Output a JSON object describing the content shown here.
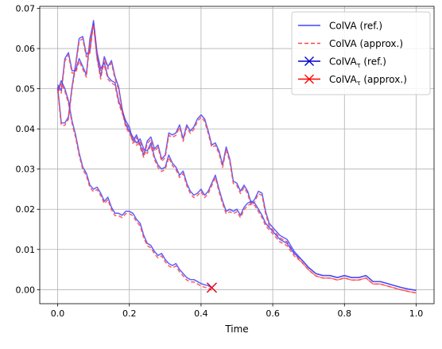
{
  "chart_data": {
    "type": "line",
    "xlabel": "Time",
    "ylabel": "",
    "xlim": [
      -0.05,
      1.05
    ],
    "ylim": [
      -0.0035,
      0.0705
    ],
    "xticks": [
      0.0,
      0.2,
      0.4,
      0.6,
      0.8,
      1.0
    ],
    "xtick_labels": [
      "0.0",
      "0.2",
      "0.4",
      "0.6",
      "0.8",
      "1.0"
    ],
    "yticks": [
      0.0,
      0.01,
      0.02,
      0.03,
      0.04,
      0.05,
      0.06,
      0.07
    ],
    "ytick_labels": [
      "0.00",
      "0.01",
      "0.02",
      "0.03",
      "0.04",
      "0.05",
      "0.06",
      "0.07"
    ],
    "grid": true,
    "legend_position": "upper-right",
    "legend": [
      {
        "label": "ColVA (ref.)",
        "color": "#4444ff",
        "style": "solid"
      },
      {
        "label": "ColVA (approx.)",
        "color": "#ff4444",
        "style": "dashed"
      },
      {
        "label": "ColVA",
        "sub": "τ",
        "suffix": " (ref.)",
        "color": "#0000cc",
        "style": "solid-x"
      },
      {
        "label": "ColVA",
        "sub": "τ",
        "suffix": " (approx.)",
        "color": "#ff0000",
        "style": "solid-x"
      }
    ],
    "series": [
      {
        "role": "path1",
        "x": [
          0.0,
          0.01,
          0.02,
          0.03,
          0.04,
          0.05,
          0.06,
          0.07,
          0.08,
          0.09,
          0.1,
          0.11,
          0.12,
          0.13,
          0.14,
          0.15,
          0.16,
          0.17,
          0.18,
          0.19,
          0.2,
          0.21,
          0.22,
          0.23,
          0.24,
          0.25,
          0.26,
          0.27,
          0.28,
          0.29,
          0.3,
          0.31,
          0.32,
          0.33,
          0.34,
          0.35,
          0.36,
          0.37,
          0.38,
          0.39,
          0.4,
          0.41,
          0.42,
          0.43,
          0.44,
          0.45,
          0.46,
          0.47,
          0.48,
          0.49,
          0.5,
          0.51,
          0.52,
          0.53,
          0.54,
          0.55,
          0.56,
          0.57,
          0.58,
          0.59,
          0.6,
          0.62,
          0.64,
          0.66,
          0.68,
          0.7,
          0.72,
          0.74,
          0.76,
          0.78,
          0.8,
          0.82,
          0.84,
          0.86,
          0.88,
          0.9,
          0.92,
          0.94,
          0.96,
          0.98,
          1.0
        ],
        "y": [
          0.0505,
          0.0415,
          0.0415,
          0.043,
          0.0505,
          0.056,
          0.0625,
          0.063,
          0.0585,
          0.0595,
          0.067,
          0.059,
          0.055,
          0.0565,
          0.053,
          0.052,
          0.0515,
          0.047,
          0.0445,
          0.042,
          0.0405,
          0.037,
          0.0385,
          0.036,
          0.0335,
          0.037,
          0.038,
          0.035,
          0.036,
          0.0325,
          0.0335,
          0.039,
          0.0385,
          0.039,
          0.041,
          0.0375,
          0.041,
          0.0395,
          0.0405,
          0.0425,
          0.0435,
          0.0425,
          0.0395,
          0.036,
          0.0365,
          0.0345,
          0.031,
          0.0355,
          0.0325,
          0.027,
          0.0265,
          0.0245,
          0.026,
          0.0245,
          0.0215,
          0.0225,
          0.0245,
          0.024,
          0.0195,
          0.0165,
          0.0155,
          0.0135,
          0.0125,
          0.0095,
          0.0075,
          0.0055,
          0.004,
          0.0035,
          0.0035,
          0.003,
          0.0035,
          0.003,
          0.003,
          0.0035,
          0.002,
          0.002,
          0.0015,
          0.001,
          0.0005,
          0.0001,
          -0.0002
        ]
      },
      {
        "role": "path2",
        "x": [
          0.0,
          0.01,
          0.02,
          0.03,
          0.04,
          0.05,
          0.06,
          0.07,
          0.08,
          0.09,
          0.1,
          0.11,
          0.12,
          0.13,
          0.14,
          0.15,
          0.16,
          0.17,
          0.18,
          0.19,
          0.2,
          0.21,
          0.22,
          0.23,
          0.24,
          0.25,
          0.26,
          0.27,
          0.28,
          0.29,
          0.3,
          0.31,
          0.32,
          0.33,
          0.34,
          0.35,
          0.36,
          0.37,
          0.38,
          0.39,
          0.4,
          0.41,
          0.42,
          0.43,
          0.44,
          0.45,
          0.46,
          0.47,
          0.48,
          0.49,
          0.5,
          0.51,
          0.52,
          0.53,
          0.54,
          0.55,
          0.56,
          0.57,
          0.58,
          0.59,
          0.6,
          0.62,
          0.64,
          0.66,
          0.68,
          0.7,
          0.72,
          0.74,
          0.76,
          0.78,
          0.8,
          0.82,
          0.84,
          0.86,
          0.88,
          0.9,
          0.92,
          0.94,
          0.96,
          0.98,
          1.0
        ],
        "y": [
          0.051,
          0.0495,
          0.0575,
          0.059,
          0.0545,
          0.0545,
          0.0575,
          0.0555,
          0.0535,
          0.0625,
          0.0665,
          0.058,
          0.053,
          0.058,
          0.0555,
          0.057,
          0.053,
          0.0505,
          0.045,
          0.041,
          0.0395,
          0.038,
          0.0365,
          0.0375,
          0.035,
          0.0345,
          0.0365,
          0.033,
          0.031,
          0.03,
          0.0305,
          0.0335,
          0.0315,
          0.0305,
          0.0285,
          0.0295,
          0.0265,
          0.0245,
          0.0235,
          0.024,
          0.025,
          0.0235,
          0.0245,
          0.0265,
          0.0285,
          0.025,
          0.022,
          0.0195,
          0.02,
          0.0195,
          0.02,
          0.0185,
          0.0205,
          0.0215,
          0.022,
          0.0215,
          0.02,
          0.0185,
          0.0165,
          0.0155,
          0.0145,
          0.0125,
          0.0115,
          0.009,
          0.0075,
          0.0055,
          0.004,
          0.0035,
          0.0035,
          0.003,
          0.0035,
          0.003,
          0.003,
          0.0035,
          0.002,
          0.002,
          0.0015,
          0.001,
          0.0005,
          0.0001,
          -0.0002
        ]
      },
      {
        "role": "path3",
        "x": [
          0.0,
          0.01,
          0.02,
          0.03,
          0.04,
          0.05,
          0.06,
          0.07,
          0.08,
          0.09,
          0.1,
          0.11,
          0.12,
          0.13,
          0.14,
          0.15,
          0.16,
          0.17,
          0.18,
          0.19,
          0.2,
          0.21,
          0.22,
          0.23,
          0.24,
          0.25,
          0.26,
          0.27,
          0.28,
          0.29,
          0.3,
          0.31,
          0.32,
          0.33,
          0.34,
          0.35,
          0.36,
          0.37,
          0.38,
          0.39,
          0.4,
          0.41,
          0.42,
          0.43
        ],
        "y": [
          0.0495,
          0.052,
          0.05,
          0.047,
          0.042,
          0.0385,
          0.034,
          0.0305,
          0.029,
          0.026,
          0.025,
          0.0255,
          0.024,
          0.022,
          0.023,
          0.0205,
          0.019,
          0.019,
          0.0185,
          0.0195,
          0.0195,
          0.019,
          0.0175,
          0.0165,
          0.0135,
          0.0115,
          0.011,
          0.0095,
          0.0085,
          0.009,
          0.0075,
          0.0065,
          0.006,
          0.0065,
          0.005,
          0.004,
          0.003,
          0.0025,
          0.0025,
          0.002,
          0.0015,
          0.0012,
          0.001,
          0.0004
        ]
      }
    ],
    "stopping_marker": {
      "x": 0.43,
      "y": 0.0005
    }
  }
}
